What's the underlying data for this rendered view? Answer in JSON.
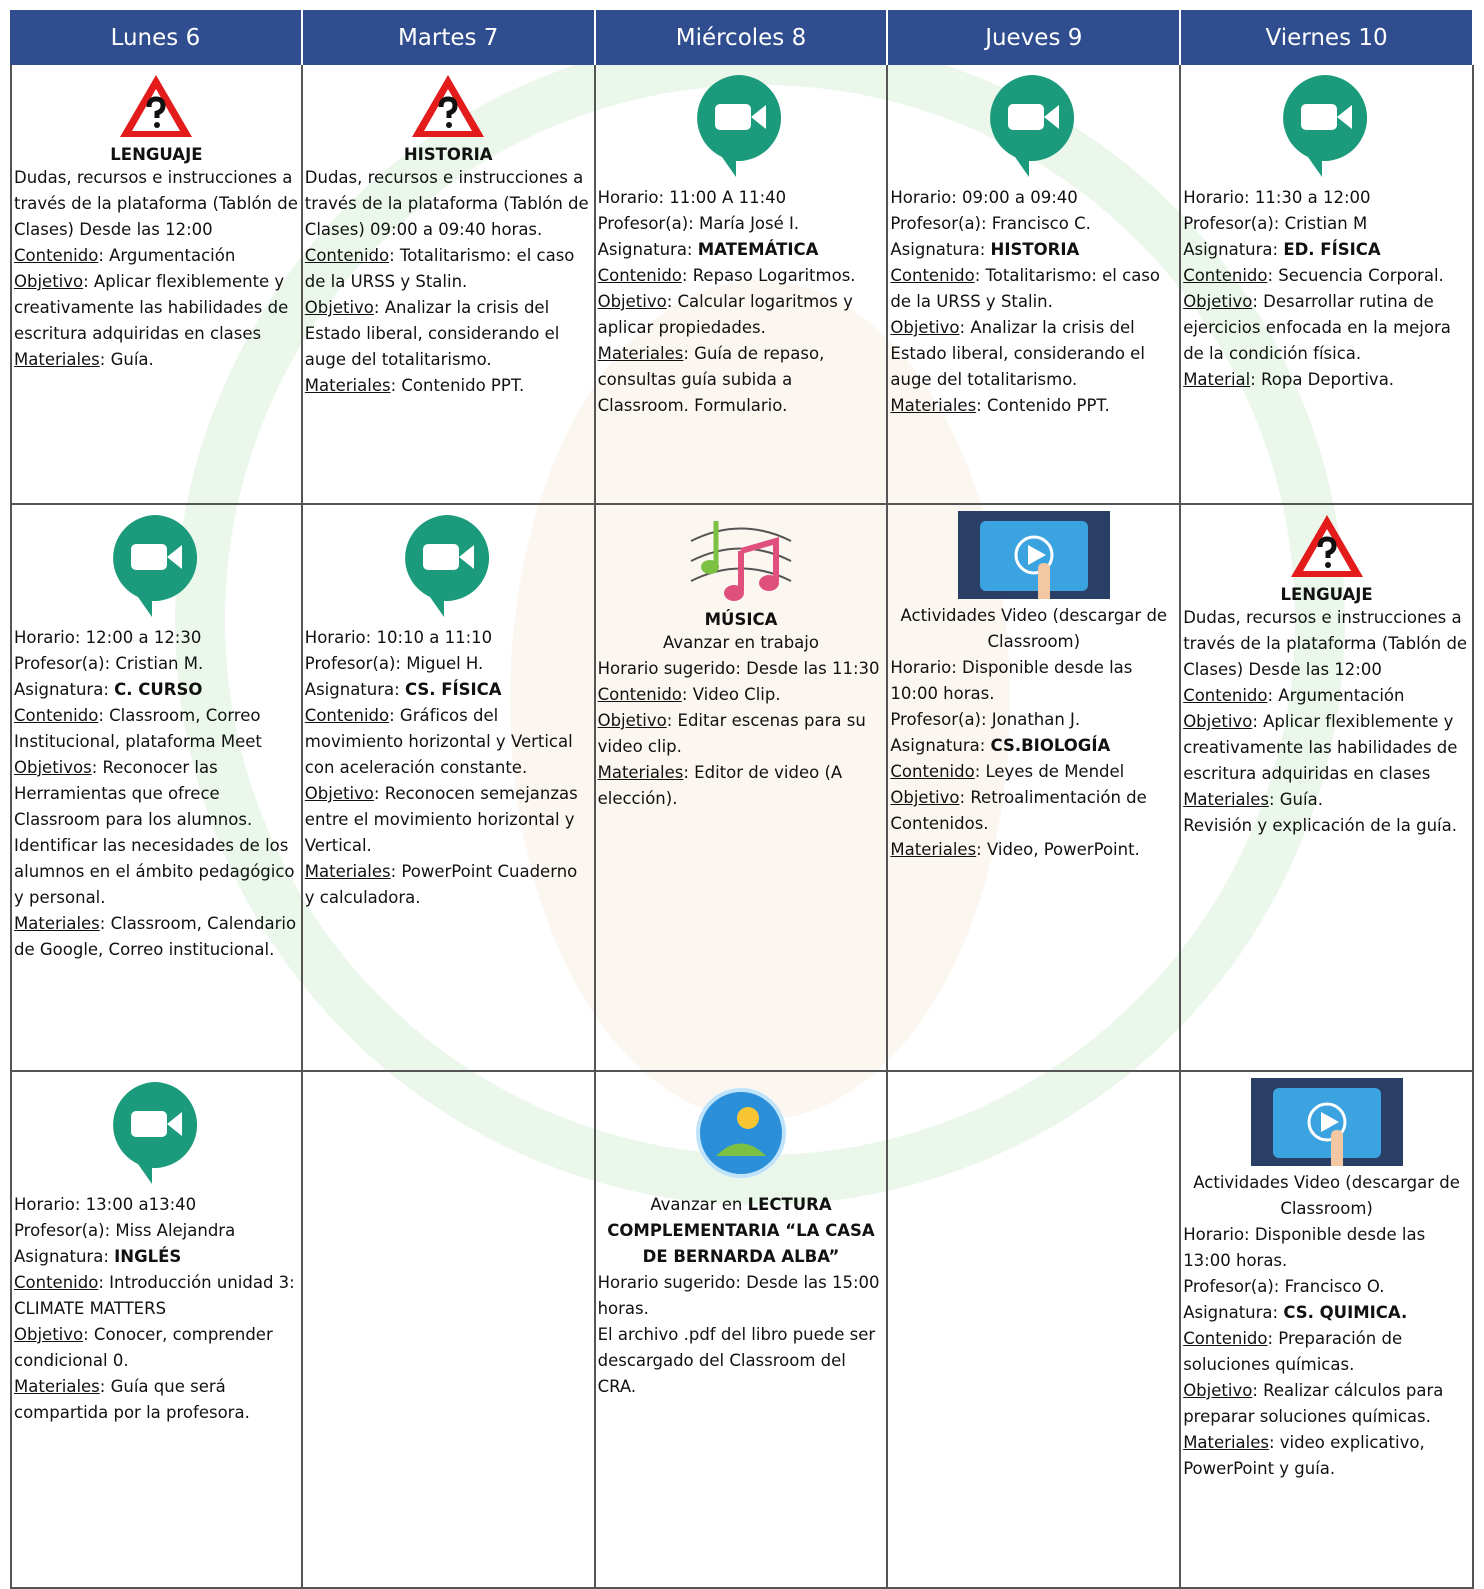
{
  "header": [
    "Lunes 6",
    "Martes 7",
    "Miércoles 8",
    "Jueves 9",
    "Viernes 10"
  ],
  "rows": [
    [
      {
        "icon": "warning",
        "title": "LENGUAJE",
        "lines": [
          [
            {
              "t": "Dudas, recursos e instrucciones a través de la plataforma (Tablón de Clases) Desde las 12:00"
            }
          ],
          [
            {
              "u": "Contenido"
            },
            {
              "t": ": Argumentación"
            }
          ],
          [
            {
              "u": "Objetivo"
            },
            {
              "t": ": Aplicar flexiblemente y creativamente las habilidades de escritura adquiridas en clases"
            }
          ],
          [
            {
              "u": "Materiales"
            },
            {
              "t": ": Guía."
            }
          ]
        ]
      },
      {
        "icon": "warning",
        "title": "HISTORIA",
        "lines": [
          [
            {
              "t": "Dudas, recursos e instrucciones a través de la plataforma (Tablón de Clases) 09:00 a 09:40 horas."
            }
          ],
          [
            {
              "u": "Contenido"
            },
            {
              "t": ": Totalitarismo: el caso de la URSS y Stalin."
            }
          ],
          [
            {
              "u": "Objetivo"
            },
            {
              "t": ": Analizar la crisis del Estado liberal, considerando el auge del totalitarismo."
            }
          ],
          [
            {
              "u": "Materiales"
            },
            {
              "t": ": Contenido PPT."
            }
          ]
        ]
      },
      {
        "icon": "meet",
        "lines": [
          [
            {
              "t": "Horario: 11:00 A 11:40"
            }
          ],
          [
            {
              "t": "Profesor(a): María José I."
            }
          ],
          [
            {
              "t": "Asignatura: "
            },
            {
              "b": "MATEMÁTICA"
            }
          ],
          [
            {
              "u": "Contenido"
            },
            {
              "t": ": Repaso Logaritmos."
            }
          ],
          [
            {
              "u": "Objetivo"
            },
            {
              "t": ": Calcular logaritmos y aplicar propiedades."
            }
          ],
          [
            {
              "u": "Materiales"
            },
            {
              "t": ": Guía de repaso, consultas guía subida a Classroom. Formulario."
            }
          ]
        ]
      },
      {
        "icon": "meet",
        "lines": [
          [
            {
              "t": "Horario: 09:00 a 09:40"
            }
          ],
          [
            {
              "t": "Profesor(a): Francisco C."
            }
          ],
          [
            {
              "t": "Asignatura: "
            },
            {
              "b": "HISTORIA"
            }
          ],
          [
            {
              "u": "Contenido"
            },
            {
              "t": ": Totalitarismo: el caso de la URSS y Stalin."
            }
          ],
          [
            {
              "u": "Objetivo"
            },
            {
              "t": ": Analizar la crisis del Estado liberal, considerando el auge del totalitarismo."
            }
          ],
          [
            {
              "u": "Materiales"
            },
            {
              "t": ": Contenido PPT."
            }
          ]
        ]
      },
      {
        "icon": "meet",
        "lines": [
          [
            {
              "t": "Horario: 11:30 a 12:00"
            }
          ],
          [
            {
              "t": "Profesor(a): Cristian M"
            }
          ],
          [
            {
              "t": "Asignatura: "
            },
            {
              "b": "ED. FÍSICA"
            }
          ],
          [
            {
              "u": "Contenido"
            },
            {
              "t": ": Secuencia Corporal."
            }
          ],
          [
            {
              "u": "Objetivo"
            },
            {
              "t": ": Desarrollar rutina de ejercicios enfocada en la mejora de la condición física."
            }
          ],
          [
            {
              "u": "Material"
            },
            {
              "t": ": Ropa Deportiva."
            }
          ]
        ]
      }
    ],
    [
      {
        "icon": "meet",
        "lines": [
          [
            {
              "t": "Horario: 12:00 a 12:30"
            }
          ],
          [
            {
              "t": "Profesor(a): Cristian M."
            }
          ],
          [
            {
              "t": "Asignatura: "
            },
            {
              "b": "C. CURSO"
            }
          ],
          [
            {
              "u": "Contenido"
            },
            {
              "t": ": Classroom, Correo Institucional, plataforma Meet"
            }
          ],
          [
            {
              "u": "Objetivos"
            },
            {
              "t": ": Reconocer las Herramientas que ofrece Classroom para los alumnos."
            }
          ],
          [
            {
              "t": "Identificar las necesidades de los alumnos en el ámbito pedagógico y personal."
            }
          ],
          [
            {
              "u": "Materiales"
            },
            {
              "t": ": Classroom, Calendario de Google, Correo institucional."
            }
          ]
        ]
      },
      {
        "icon": "meet",
        "lines": [
          [
            {
              "t": "Horario: 10:10 a 11:10"
            }
          ],
          [
            {
              "t": "Profesor(a): Miguel H."
            }
          ],
          [
            {
              "t": "Asignatura: "
            },
            {
              "b": "CS. FÍSICA"
            }
          ],
          [
            {
              "u": "Contenido"
            },
            {
              "t": ": Gráficos del movimiento horizontal y Vertical con aceleración constante."
            }
          ],
          [
            {
              "u": "Objetivo"
            },
            {
              "t": ": Reconocen semejanzas entre el movimiento horizontal y Vertical."
            }
          ],
          [
            {
              "u": "Materiales"
            },
            {
              "t": ": PowerPoint Cuaderno y calculadora."
            }
          ]
        ]
      },
      {
        "icon": "music",
        "title": "MÚSICA",
        "center": [
          [
            {
              "t": "Avanzar en trabajo"
            }
          ]
        ],
        "lines": [
          [
            {
              "t": "Horario sugerido: Desde las 11:30"
            }
          ],
          [
            {
              "u": "Contenido"
            },
            {
              "t": ": Video Clip."
            }
          ],
          [
            {
              "u": "Objetivo"
            },
            {
              "t": ": Editar escenas para su video clip."
            }
          ],
          [
            {
              "u": "Materiales"
            },
            {
              "t": ": Editor de video (A elección)."
            }
          ]
        ]
      },
      {
        "icon": "video",
        "center": [
          [
            {
              "t": "Actividades Video (descargar de Classroom)"
            }
          ]
        ],
        "lines": [
          [
            {
              "t": "Horario: Disponible desde las 10:00 horas."
            }
          ],
          [
            {
              "t": "Profesor(a): Jonathan J."
            }
          ],
          [
            {
              "t": "Asignatura: "
            },
            {
              "b": "CS.BIOLOGÍA"
            }
          ],
          [
            {
              "u": "Contenido"
            },
            {
              "t": ": Leyes de Mendel"
            }
          ],
          [
            {
              "u": "Objetivo"
            },
            {
              "t": ": Retroalimentación de Contenidos."
            }
          ],
          [
            {
              "u": "Materiales"
            },
            {
              "t": ": Video, PowerPoint."
            }
          ]
        ]
      },
      {
        "icon": "warning",
        "title": "LENGUAJE",
        "lines": [
          [
            {
              "t": "Dudas, recursos e instrucciones a través de la plataforma (Tablón de Clases) Desde las 12:00"
            }
          ],
          [
            {
              "u": "Contenido"
            },
            {
              "t": ": Argumentación"
            }
          ],
          [
            {
              "u": "Objetivo"
            },
            {
              "t": ": Aplicar flexiblemente y creativamente las habilidades de escritura adquiridas en clases"
            }
          ],
          [
            {
              "u": "Materiales"
            },
            {
              "t": ": Guía."
            }
          ],
          [
            {
              "t": "Revisión y explicación de la guía."
            }
          ]
        ]
      }
    ],
    [
      {
        "icon": "meet",
        "lines": [
          [
            {
              "t": "Horario: 13:00 a13:40"
            }
          ],
          [
            {
              "t": "Profesor(a): Miss Alejandra"
            }
          ],
          [
            {
              "t": "Asignatura: "
            },
            {
              "b": "INGLÉS"
            }
          ],
          [
            {
              "u": "Contenido"
            },
            {
              "t": ": Introducción unidad 3: CLIMATE MATTERS"
            }
          ],
          [
            {
              "u": "Objetivo"
            },
            {
              "t": ": Conocer, comprender condicional 0."
            }
          ],
          [
            {
              "u": "Materiales"
            },
            {
              "t": ": Guía que será compartida por la profesora."
            }
          ]
        ]
      },
      null,
      {
        "icon": "reading",
        "center": [
          [
            {
              "t": "Avanzar en "
            },
            {
              "b": "LECTURA COMPLEMENTARIA “LA CASA DE BERNARDA ALBA”"
            }
          ]
        ],
        "lines": [
          [
            {
              "t": "Horario sugerido: Desde las 15:00 horas."
            }
          ],
          [
            {
              "t": "El archivo .pdf del libro puede ser descargado del Classroom del CRA."
            }
          ]
        ]
      },
      null,
      {
        "icon": "video",
        "center": [
          [
            {
              "t": "Actividades Video (descargar de Classroom)"
            }
          ]
        ],
        "lines": [
          [
            {
              "t": "Horario: Disponible desde las 13:00 horas."
            }
          ],
          [
            {
              "t": "Profesor(a): Francisco O."
            }
          ],
          [
            {
              "t": "Asignatura: "
            },
            {
              "b": "CS. QUIMICA."
            }
          ],
          [
            {
              "u": "Contenido"
            },
            {
              "t": ": Preparación de soluciones químicas."
            }
          ],
          [
            {
              "u": "Objetivo"
            },
            {
              "t": ": Realizar cálculos para preparar soluciones químicas."
            }
          ],
          [
            {
              "u": "Materiales"
            },
            {
              "t": ": video explicativo, PowerPoint y guía."
            }
          ]
        ]
      }
    ]
  ]
}
